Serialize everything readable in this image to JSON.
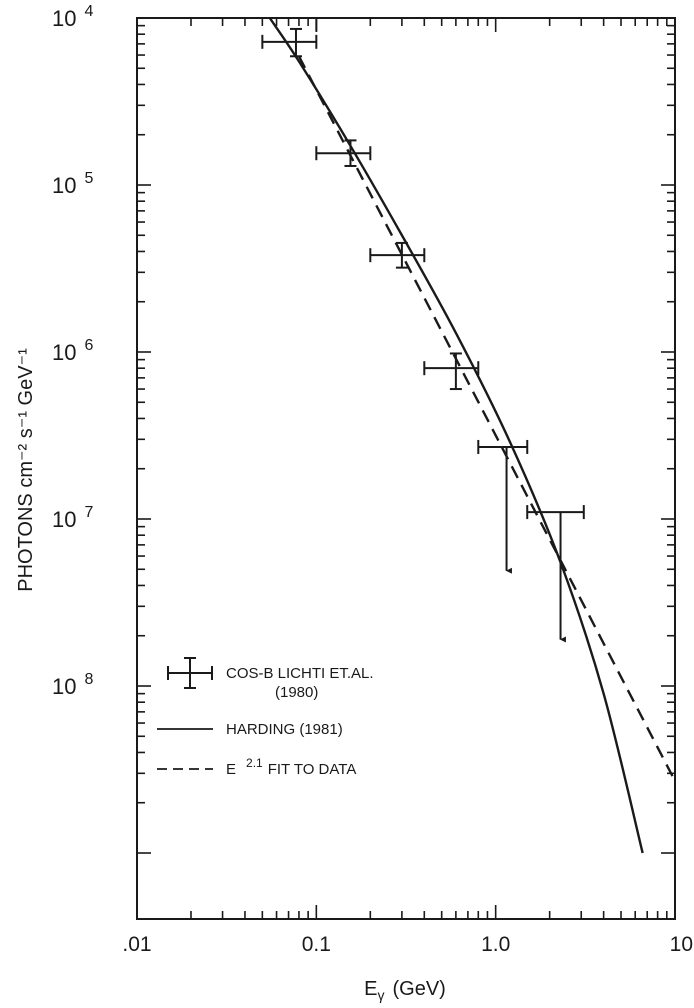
{
  "chart_data": {
    "type": "scatter",
    "title": "",
    "xlabel": "E",
    "xlabel_subscript": "γ",
    "xlabel_unit": "(GeV)",
    "ylabel": "PHOTONS cm⁻² s⁻¹ GeV⁻¹",
    "x_scale": "log",
    "y_scale": "log",
    "xlim": [
      0.01,
      10
    ],
    "ylim": [
      1e-09,
      0.0001
    ],
    "x_ticks": [
      {
        "value": 0.01,
        "label": ".01"
      },
      {
        "value": 0.1,
        "label": "0.1"
      },
      {
        "value": 1.0,
        "label": "1.0"
      },
      {
        "value": 10,
        "label": "10"
      }
    ],
    "y_ticks": [
      {
        "value": 0.0001,
        "base": "10",
        "exp": "4"
      },
      {
        "value": 1e-05,
        "base": "10",
        "exp": "5"
      },
      {
        "value": 1e-06,
        "base": "10",
        "exp": "6"
      },
      {
        "value": 1e-07,
        "base": "10",
        "exp": "7"
      },
      {
        "value": 1e-08,
        "base": "10",
        "exp": "8"
      }
    ],
    "grid": false,
    "legend_position": "lower-left",
    "series": [
      {
        "name": "COS-B LICHTI ET.AL. (1980)",
        "legend_line1": "COS-B LICHTI ET.AL.",
        "legend_line2": "(1980)",
        "style": "errorbar",
        "points": [
          {
            "x": 0.077,
            "xlo": 0.05,
            "xhi": 0.1,
            "y": 7.2e-05,
            "ylo": 5.9e-05,
            "yhi": 8.6e-05,
            "upper_limit": false
          },
          {
            "x": 0.155,
            "xlo": 0.1,
            "xhi": 0.2,
            "y": 1.55e-05,
            "ylo": 1.3e-05,
            "yhi": 1.85e-05,
            "upper_limit": false
          },
          {
            "x": 0.3,
            "xlo": 0.2,
            "xhi": 0.4,
            "y": 3.8e-06,
            "ylo": 3.2e-06,
            "yhi": 4.5e-06,
            "upper_limit": false
          },
          {
            "x": 0.6,
            "xlo": 0.4,
            "xhi": 0.8,
            "y": 8e-07,
            "ylo": 6e-07,
            "yhi": 9.8e-07,
            "upper_limit": false
          },
          {
            "x": 1.15,
            "xlo": 0.8,
            "xhi": 1.5,
            "y": 2.7e-07,
            "ylo": 4.9e-08,
            "upper_limit": true
          },
          {
            "x": 2.3,
            "xlo": 1.5,
            "xhi": 3.1,
            "y": 1.1e-07,
            "ylo": 1.9e-08,
            "upper_limit": true
          }
        ]
      },
      {
        "name": "HARDING (1981)",
        "style": "solid",
        "points": [
          {
            "x": 0.055,
            "y": 0.0001
          },
          {
            "x": 0.08,
            "y": 5.5e-05
          },
          {
            "x": 0.15,
            "y": 1.82e-05
          },
          {
            "x": 0.3,
            "y": 5e-06
          },
          {
            "x": 0.6,
            "y": 1.3e-06
          },
          {
            "x": 1.2,
            "y": 2.9e-07
          },
          {
            "x": 2.3,
            "y": 5.5e-08
          },
          {
            "x": 4.0,
            "y": 9e-09
          },
          {
            "x": 6.6,
            "y": 1e-09
          }
        ]
      },
      {
        "name": "E ⁻²·¹ FIT TO DATA",
        "legend_label": "FIT TO DATA",
        "legend_prefix": "E",
        "legend_exp": "2.1",
        "style": "dashed",
        "points": [
          {
            "x": 0.08,
            "y": 5.9e-05
          },
          {
            "x": 10,
            "y": 2.7e-09
          }
        ]
      }
    ],
    "extra_marks": [
      {
        "type": "vertical-segment",
        "x": 0.1,
        "y_from": 0.0001,
        "y_to": 8.3e-05
      }
    ]
  }
}
